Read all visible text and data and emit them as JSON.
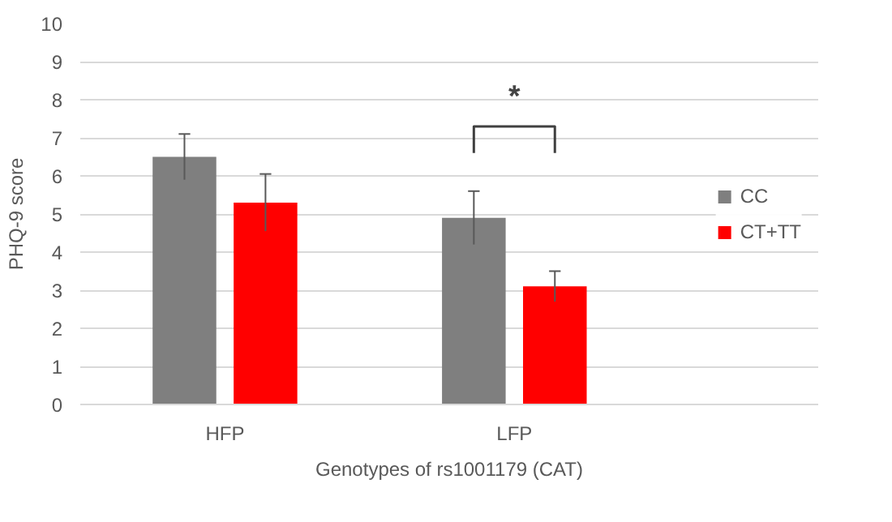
{
  "chart_data": {
    "type": "bar",
    "xlabel": "Genotypes of rs1001179 (CAT)",
    "ylabel": "PHQ-9 score",
    "categories": [
      "HFP",
      "LFP"
    ],
    "series": [
      {
        "name": "CC",
        "color": "#7f7f7f",
        "values": [
          6.5,
          4.9
        ],
        "errors": [
          0.6,
          0.7
        ]
      },
      {
        "name": "CT+TT",
        "color": "#ff0000",
        "values": [
          5.3,
          3.1
        ],
        "errors": [
          0.75,
          0.4
        ]
      }
    ],
    "ylim": [
      0,
      10
    ],
    "yticks": [
      0,
      1,
      2,
      3,
      4,
      5,
      6,
      7,
      8,
      9,
      10
    ],
    "grid": "y",
    "legend": "right",
    "annotations": [
      "*"
    ]
  }
}
